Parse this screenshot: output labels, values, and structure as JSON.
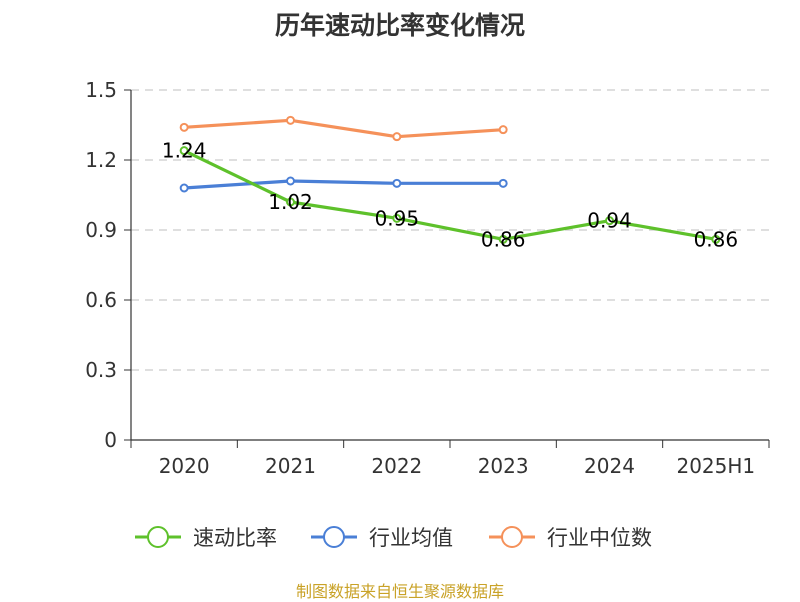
{
  "chart_data": {
    "type": "line",
    "title": "历年速动比率变化情况",
    "categories": [
      "2020",
      "2021",
      "2022",
      "2023",
      "2024",
      "2025H1"
    ],
    "y_ticks": [
      "0",
      "0.3",
      "0.6",
      "0.9",
      "1.2",
      "1.5"
    ],
    "ylim": [
      0,
      1.5
    ],
    "grid": true,
    "legend_position": "bottom",
    "series": [
      {
        "name": "速动比率",
        "color": "#5ec12b",
        "values": [
          1.24,
          1.02,
          0.95,
          0.86,
          0.94,
          0.86
        ],
        "labels": [
          "1.24",
          "1.02",
          "0.95",
          "0.86",
          "0.94",
          "0.86"
        ]
      },
      {
        "name": "行业均值",
        "color": "#4a7fd6",
        "values": [
          1.08,
          1.11,
          1.1,
          1.1,
          null,
          null
        ]
      },
      {
        "name": "行业中位数",
        "color": "#f5915a",
        "values": [
          1.34,
          1.37,
          1.3,
          1.33,
          null,
          null
        ]
      }
    ]
  },
  "source_note": "制图数据来自恒生聚源数据库"
}
